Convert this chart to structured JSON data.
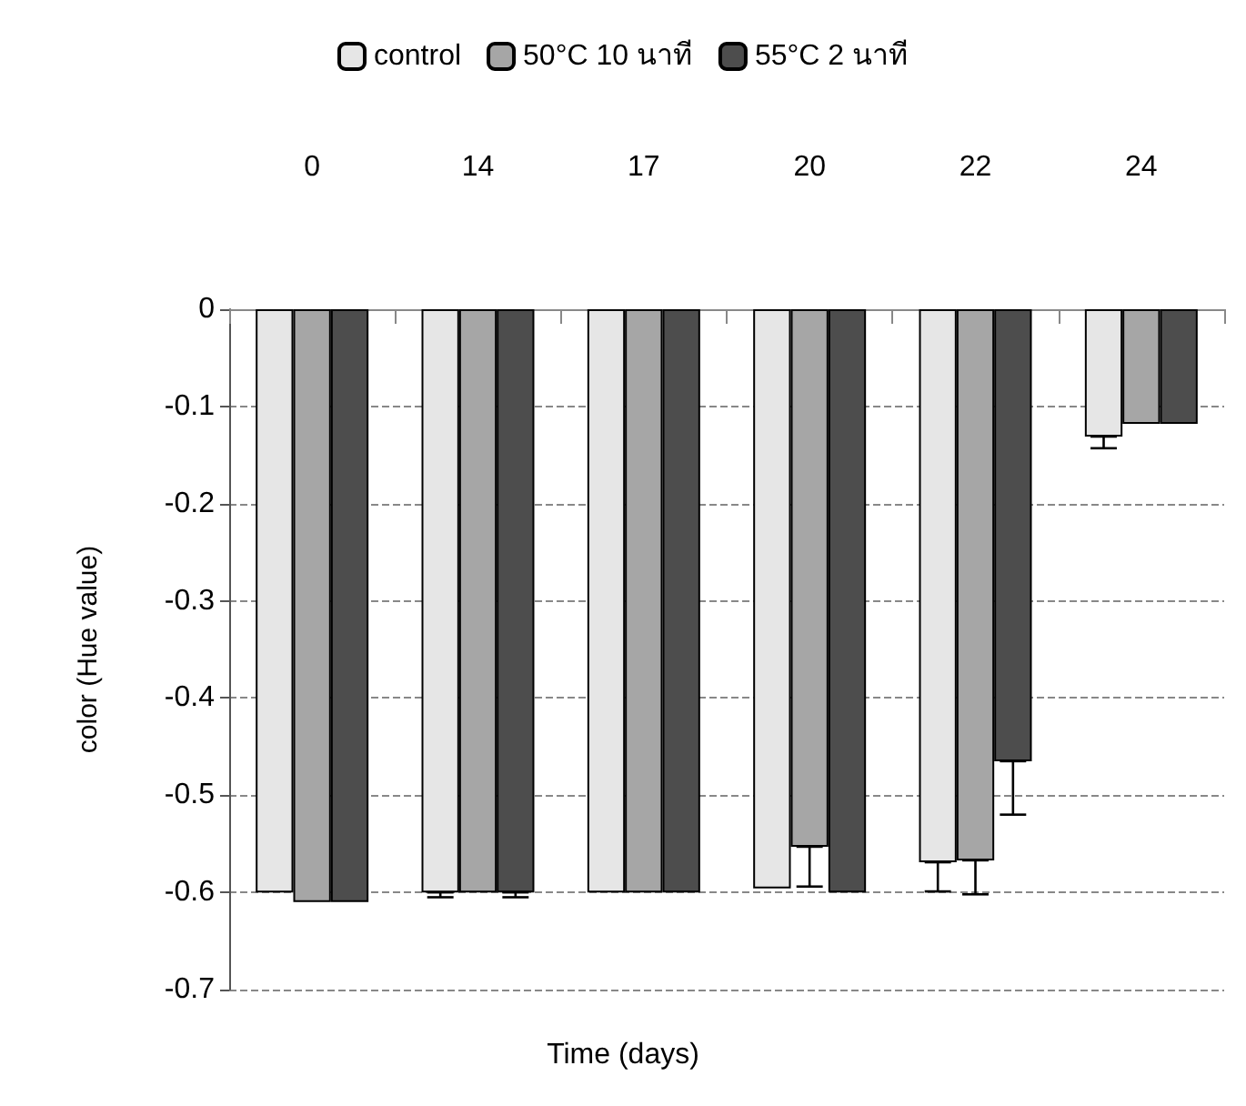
{
  "chart_data": {
    "type": "bar",
    "xlabel": "Time (days)",
    "ylabel": "color (Hue value)",
    "categories": [
      "0",
      "14",
      "17",
      "20",
      "22",
      "24"
    ],
    "series": [
      {
        "name": "control",
        "color": "#e6e6e6",
        "values": [
          -0.6,
          -0.6,
          -0.6,
          -0.596,
          -0.569,
          -0.131
        ],
        "errors": [
          null,
          [
            -0.605,
            -0.6
          ],
          null,
          null,
          [
            -0.599,
            -0.569
          ],
          [
            -0.143,
            -0.131
          ]
        ]
      },
      {
        "name": "50°C 10 นาที",
        "color": "#a6a6a6",
        "values": [
          -0.61,
          -0.6,
          -0.6,
          -0.553,
          -0.567,
          -0.118
        ],
        "errors": [
          null,
          null,
          null,
          [
            -0.594,
            -0.553
          ],
          [
            -0.602,
            -0.567
          ],
          null
        ]
      },
      {
        "name": "55°C 2 นาที",
        "color": "#4d4d4d",
        "values": [
          -0.61,
          -0.6,
          -0.6,
          -0.6,
          -0.465,
          -0.118
        ],
        "errors": [
          null,
          [
            -0.605,
            -0.6
          ],
          null,
          null,
          [
            -0.52,
            -0.465
          ],
          null
        ]
      }
    ],
    "ylim": [
      -0.7,
      0
    ],
    "yticks": [
      0,
      -0.1,
      -0.2,
      -0.3,
      -0.4,
      -0.5,
      -0.6,
      -0.7
    ],
    "grid": "y",
    "legend": "top"
  }
}
